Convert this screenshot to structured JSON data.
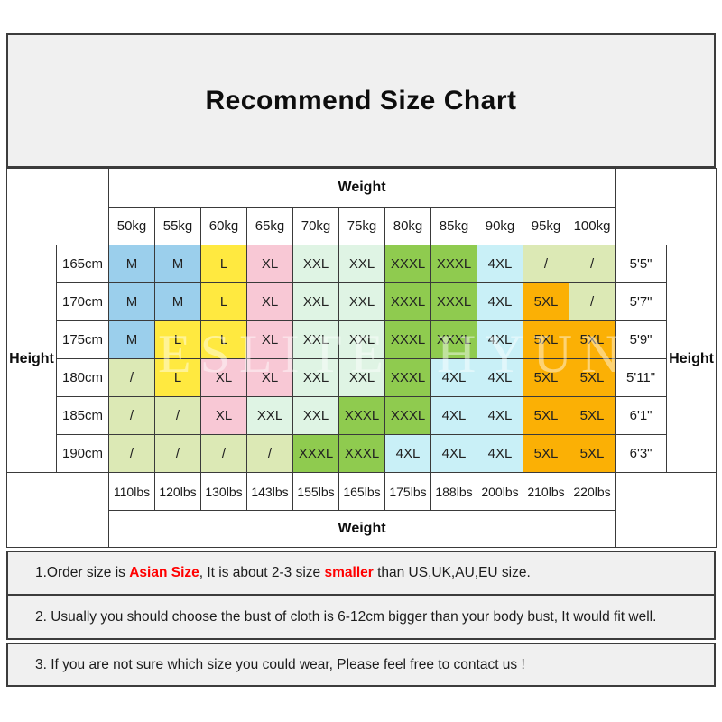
{
  "title": "Recommend Size Chart",
  "watermark": "ESLITE HYUN",
  "colors": {
    "highlight": "#FF0000",
    "panel_bg": "#F0F0F0",
    "border": "#3A3A3A"
  },
  "size_table": {
    "weight_header_top": "Weight",
    "weight_header_bottom": "Weight",
    "height_header_left": "Height",
    "height_header_right": "Height",
    "kg_labels": [
      "50kg",
      "55kg",
      "60kg",
      "65kg",
      "70kg",
      "75kg",
      "80kg",
      "85kg",
      "90kg",
      "95kg",
      "100kg"
    ],
    "lbs_labels": [
      "110lbs",
      "120lbs",
      "130lbs",
      "143lbs",
      "155lbs",
      "165lbs",
      "175lbs",
      "188lbs",
      "200lbs",
      "210lbs",
      "220lbs"
    ],
    "rows": [
      {
        "cm": "165cm",
        "ft": "5'5\"",
        "sizes": [
          "M",
          "M",
          "L",
          "XL",
          "XXL",
          "XXL",
          "XXXL",
          "XXXL",
          "4XL",
          "/",
          "/"
        ]
      },
      {
        "cm": "170cm",
        "ft": "5'7\"",
        "sizes": [
          "M",
          "M",
          "L",
          "XL",
          "XXL",
          "XXL",
          "XXXL",
          "XXXL",
          "4XL",
          "5XL",
          "/"
        ]
      },
      {
        "cm": "175cm",
        "ft": "5'9\"",
        "sizes": [
          "M",
          "L",
          "L",
          "XL",
          "XXL",
          "XXL",
          "XXXL",
          "XXXL",
          "4XL",
          "5XL",
          "5XL"
        ]
      },
      {
        "cm": "180cm",
        "ft": "5'11\"",
        "sizes": [
          "/",
          "L",
          "XL",
          "XL",
          "XXL",
          "XXL",
          "XXXL",
          "4XL",
          "4XL",
          "5XL",
          "5XL"
        ]
      },
      {
        "cm": "185cm",
        "ft": "6'1\"",
        "sizes": [
          "/",
          "/",
          "XL",
          "XXL",
          "XXL",
          "XXXL",
          "XXXL",
          "4XL",
          "4XL",
          "5XL",
          "5XL"
        ]
      },
      {
        "cm": "190cm",
        "ft": "6'3\"",
        "sizes": [
          "/",
          "/",
          "/",
          "/",
          "XXXL",
          "XXXL",
          "4XL",
          "4XL",
          "4XL",
          "5XL",
          "5XL"
        ]
      }
    ],
    "size_colors": {
      "M": "#9BCFEC",
      "L": "#FFE940",
      "XL": "#F8C8D5",
      "XXL": "#DFF4E4",
      "XXXL": "#8FCB4F",
      "4XL": "#C9F0F7",
      "5XL": "#FBB005",
      "/": "#DCE9B5"
    }
  },
  "notes": [
    {
      "segments": [
        {
          "text": "1.Order size is "
        },
        {
          "text": "Asian Size",
          "highlight": true
        },
        {
          "text": ", It is about 2-3 size "
        },
        {
          "text": "smaller",
          "highlight": true
        },
        {
          "text": " than US,UK,AU,EU size."
        }
      ]
    },
    {
      "segments": [
        {
          "text": "2. Usually you should choose the bust of cloth is 6-12cm bigger than your body bust, It would fit well."
        }
      ]
    },
    {
      "segments": [
        {
          "text": "3. If you are not sure which size you could wear, Please feel free to contact us !"
        }
      ]
    }
  ]
}
